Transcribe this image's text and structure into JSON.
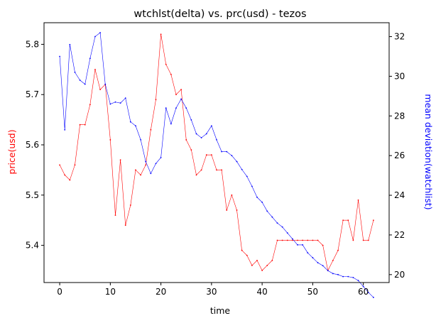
{
  "chart_data": {
    "type": "line",
    "title": "wtchlst(delta) vs. prc(usd) - tezos",
    "xlabel": "time",
    "ylabel_left": "price(usd)",
    "ylabel_right": "mean deviation(watchlist)",
    "xlim": [
      -3.1,
      65.1
    ],
    "ylim_left": [
      5.326,
      5.843
    ],
    "ylim_right": [
      19.6,
      32.7
    ],
    "x_ticks": [
      0,
      10,
      20,
      30,
      40,
      50,
      60
    ],
    "y_left_ticks": [
      5.4,
      5.5,
      5.6,
      5.7,
      5.8
    ],
    "y_right_ticks": [
      20,
      22,
      24,
      26,
      28,
      30,
      32
    ],
    "grid": false,
    "series": [
      {
        "axis": "left",
        "color": "#ff0000",
        "x": [
          0,
          1,
          2,
          3,
          4,
          5,
          6,
          7,
          8,
          9,
          10,
          11,
          12,
          13,
          14,
          15,
          16,
          17,
          18,
          19,
          20,
          21,
          22,
          23,
          24,
          25,
          26,
          27,
          28,
          29,
          30,
          31,
          32,
          33,
          34,
          35,
          36,
          37,
          38,
          39,
          40,
          41,
          42,
          43,
          44,
          45,
          46,
          47,
          48,
          49,
          50,
          51,
          52,
          53,
          54,
          55,
          56,
          57,
          58,
          59,
          60,
          61,
          62
        ],
        "values": [
          5.56,
          5.54,
          5.53,
          5.56,
          5.64,
          5.64,
          5.68,
          5.75,
          5.71,
          5.72,
          5.61,
          5.46,
          5.57,
          5.44,
          5.48,
          5.55,
          5.54,
          5.56,
          5.63,
          5.69,
          5.82,
          5.76,
          5.74,
          5.7,
          5.71,
          5.61,
          5.59,
          5.54,
          5.55,
          5.58,
          5.58,
          5.55,
          5.55,
          5.47,
          5.5,
          5.47,
          5.39,
          5.38,
          5.36,
          5.37,
          5.35,
          5.36,
          5.37,
          5.41,
          5.41,
          5.41,
          5.41,
          5.41,
          5.41,
          5.41,
          5.41,
          5.41,
          5.4,
          5.35,
          5.37,
          5.39,
          5.45,
          5.45,
          5.41,
          5.49,
          5.41,
          5.41,
          5.45
        ]
      },
      {
        "axis": "right",
        "color": "#0000ff",
        "x": [
          0,
          1,
          2,
          3,
          4,
          5,
          6,
          7,
          8,
          9,
          10,
          11,
          12,
          13,
          14,
          15,
          16,
          17,
          18,
          19,
          20,
          21,
          22,
          23,
          24,
          25,
          26,
          27,
          28,
          29,
          30,
          31,
          32,
          33,
          34,
          35,
          36,
          37,
          38,
          39,
          40,
          41,
          42,
          43,
          44,
          45,
          46,
          47,
          48,
          49,
          50,
          51,
          52,
          53,
          54,
          55,
          56,
          57,
          58,
          59,
          60,
          61,
          62
        ],
        "values": [
          31.0,
          27.3,
          31.6,
          30.2,
          29.8,
          29.6,
          30.9,
          32.0,
          32.2,
          29.6,
          28.6,
          28.7,
          28.65,
          28.9,
          27.7,
          27.5,
          26.8,
          25.7,
          25.1,
          25.6,
          25.9,
          28.4,
          27.6,
          28.4,
          28.85,
          28.4,
          27.8,
          27.1,
          26.9,
          27.1,
          27.5,
          26.8,
          26.2,
          26.2,
          26.0,
          25.7,
          25.3,
          24.95,
          24.45,
          23.9,
          23.65,
          23.2,
          22.9,
          22.6,
          22.4,
          22.1,
          21.8,
          21.5,
          21.5,
          21.1,
          20.85,
          20.6,
          20.45,
          20.2,
          20.05,
          20.0,
          19.9,
          19.9,
          19.85,
          19.7,
          19.4,
          19.1,
          18.85
        ]
      }
    ]
  }
}
